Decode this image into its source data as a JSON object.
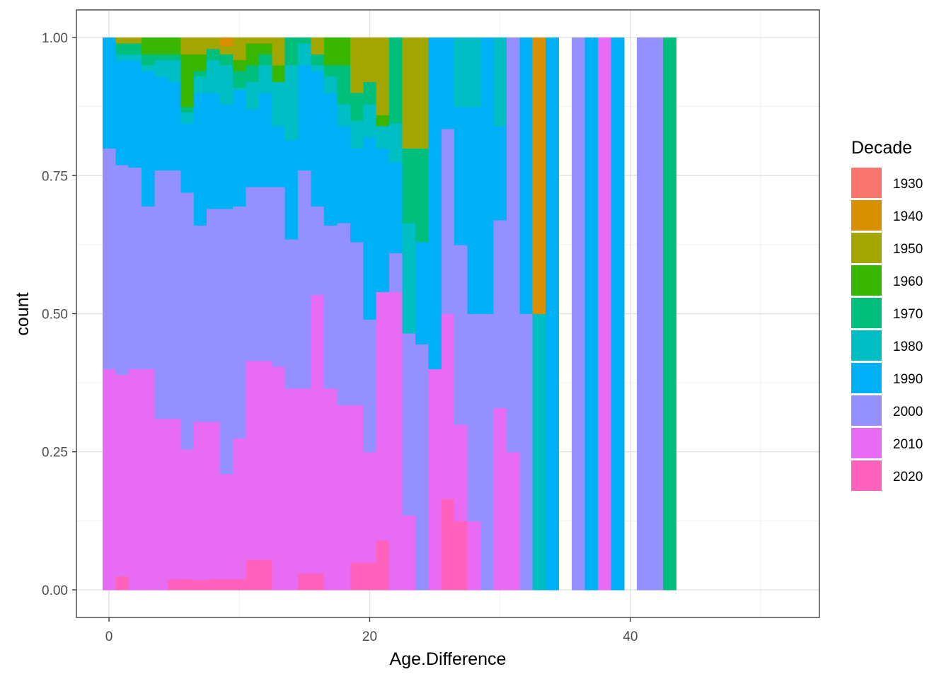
{
  "chart_data": {
    "type": "bar",
    "position": "fill",
    "xlabel": "Age.Difference",
    "ylabel": "count",
    "xlim": [
      -2.5,
      54.5
    ],
    "ylim": [
      -0.05,
      1.05
    ],
    "x_ticks": [
      0,
      20,
      40
    ],
    "x_tick_labels": [
      "0",
      "20",
      "40"
    ],
    "y_ticks": [
      0,
      0.25,
      0.5,
      0.75,
      1
    ],
    "y_tick_labels": [
      "0.00",
      "0.25",
      "0.50",
      "0.75",
      "1.00"
    ],
    "grid": true,
    "bin_width": 1,
    "legend_position": "right",
    "legend": {
      "title": "Decade",
      "entries": [
        {
          "label": "1930",
          "color": "#F8766D"
        },
        {
          "label": "1940",
          "color": "#D89000"
        },
        {
          "label": "1950",
          "color": "#A3A500"
        },
        {
          "label": "1960",
          "color": "#39B600"
        },
        {
          "label": "1970",
          "color": "#00BF7D"
        },
        {
          "label": "1980",
          "color": "#00BFC4"
        },
        {
          "label": "1990",
          "color": "#00B0F6"
        },
        {
          "label": "2000",
          "color": "#9590FF"
        },
        {
          "label": "2010",
          "color": "#E76BF3"
        },
        {
          "label": "2020",
          "color": "#FF62BC"
        }
      ]
    },
    "stack_order": [
      "2020",
      "2010",
      "2000",
      "1990",
      "1980",
      "1970",
      "1960",
      "1950",
      "1940",
      "1930"
    ],
    "bins": [
      {
        "x": 0,
        "proportions": {
          "2020": 0.0,
          "2010": 0.4,
          "2000": 0.4,
          "1990": 0.2
        }
      },
      {
        "x": 1,
        "proportions": {
          "2020": 0.025,
          "2010": 0.365,
          "2000": 0.38,
          "1990": 0.19,
          "1980": 0.01,
          "1970": 0.02,
          "1950": 0.01
        }
      },
      {
        "x": 2,
        "proportions": {
          "2020": 0.0,
          "2010": 0.4,
          "2000": 0.365,
          "1990": 0.195,
          "1980": 0.01,
          "1970": 0.02,
          "1950": 0.01
        }
      },
      {
        "x": 3,
        "proportions": {
          "2020": 0.0,
          "2010": 0.4,
          "2000": 0.295,
          "1990": 0.245,
          "1980": 0.01,
          "1970": 0.02,
          "1960": 0.03
        }
      },
      {
        "x": 4,
        "proportions": {
          "2020": 0.0,
          "2010": 0.31,
          "2000": 0.45,
          "1990": 0.17,
          "1980": 0.03,
          "1970": 0.01,
          "1960": 0.03
        }
      },
      {
        "x": 5,
        "proportions": {
          "2020": 0.02,
          "2010": 0.29,
          "2000": 0.45,
          "1990": 0.16,
          "1980": 0.04,
          "1970": 0.01,
          "1960": 0.03
        }
      },
      {
        "x": 6,
        "proportions": {
          "2020": 0.02,
          "2010": 0.235,
          "2000": 0.465,
          "1990": 0.125,
          "1980": 0.02,
          "1970": 0.01,
          "1960": 0.095,
          "1950": 0.03
        }
      },
      {
        "x": 7,
        "proportions": {
          "2020": 0.018,
          "2010": 0.287,
          "2000": 0.355,
          "1990": 0.24,
          "1980": 0.03,
          "1970": 0.01,
          "1960": 0.03,
          "1950": 0.03
        }
      },
      {
        "x": 8,
        "proportions": {
          "2020": 0.02,
          "2010": 0.285,
          "2000": 0.385,
          "1990": 0.21,
          "1980": 0.06,
          "1970": 0.02,
          "1950": 0.02
        }
      },
      {
        "x": 9,
        "proportions": {
          "2020": 0.02,
          "2010": 0.19,
          "2000": 0.48,
          "1990": 0.19,
          "1980": 0.07,
          "1970": 0.02,
          "1950": 0.015,
          "1940": 0.015
        }
      },
      {
        "x": 10,
        "proportions": {
          "2020": 0.02,
          "2010": 0.255,
          "2000": 0.42,
          "1990": 0.21,
          "1980": 0.005,
          "1970": 0.03,
          "1960": 0.02,
          "1950": 0.04
        }
      },
      {
        "x": 11,
        "proportions": {
          "2020": 0.055,
          "2010": 0.36,
          "2000": 0.315,
          "1990": 0.14,
          "1980": 0.05,
          "1970": 0.03,
          "1960": 0.04,
          "1950": 0.01
        }
      },
      {
        "x": 12,
        "proportions": {
          "2020": 0.055,
          "2010": 0.36,
          "2000": 0.315,
          "1990": 0.17,
          "1980": 0.05,
          "1970": 0.02,
          "1960": 0.02,
          "1950": 0.01
        }
      },
      {
        "x": 13,
        "proportions": {
          "2020": 0.0,
          "2010": 0.405,
          "2000": 0.325,
          "1990": 0.11,
          "1980": 0.08,
          "1970": 0.0,
          "1960": 0.03,
          "1950": 0.05
        }
      },
      {
        "x": 14,
        "proportions": {
          "2020": 0.0,
          "2010": 0.365,
          "2000": 0.27,
          "1990": 0.18,
          "1980": 0.135,
          "1970": 0.05
        }
      },
      {
        "x": 15,
        "proportions": {
          "2020": 0.03,
          "2010": 0.335,
          "2000": 0.395,
          "1990": 0.19,
          "1980": 0.04,
          "1970": 0.01
        }
      },
      {
        "x": 16,
        "proportions": {
          "2020": 0.03,
          "2010": 0.505,
          "2000": 0.16,
          "1990": 0.245,
          "1980": 0.01,
          "1970": 0.02,
          "1950": 0.03
        }
      },
      {
        "x": 17,
        "proportions": {
          "2020": 0.0,
          "2010": 0.365,
          "2000": 0.295,
          "1990": 0.24,
          "1980": 0.03,
          "1970": 0.02,
          "1960": 0.05
        }
      },
      {
        "x": 18,
        "proportions": {
          "2020": 0.0,
          "2010": 0.335,
          "2000": 0.33,
          "1990": 0.175,
          "1980": 0.04,
          "1970": 0.07,
          "1960": 0.05
        }
      },
      {
        "x": 19,
        "proportions": {
          "2020": 0.05,
          "2010": 0.285,
          "2000": 0.295,
          "1990": 0.17,
          "1980": 0.05,
          "1970": 0.05,
          "1950": 0.1
        }
      },
      {
        "x": 20,
        "proportions": {
          "2020": 0.05,
          "2010": 0.2,
          "2000": 0.24,
          "1990": 0.33,
          "1980": 0.06,
          "1970": 0.04,
          "1950": 0.08
        }
      },
      {
        "x": 21,
        "proportions": {
          "2020": 0.09,
          "2010": 0.45,
          "2000": 0.0,
          "1990": 0.26,
          "1980": 0.04,
          "1960": 0.02,
          "1950": 0.14
        }
      },
      {
        "x": 22,
        "proportions": {
          "2020": 0.0,
          "2010": 0.54,
          "2000": 0.07,
          "1990": 0.165,
          "1980": 0.07,
          "1970": 0.155
        }
      },
      {
        "x": 23,
        "proportions": {
          "2020": 0.0,
          "2010": 0.135,
          "2000": 0.33,
          "1990": 0.0,
          "1980": 0.2,
          "1970": 0.135,
          "1950": 0.2
        }
      },
      {
        "x": 24,
        "proportions": {
          "2020": 0.0,
          "2010": 0.0,
          "2000": 0.445,
          "1990": 0.185,
          "1970": 0.17,
          "1950": 0.2
        }
      },
      {
        "x": 25,
        "proportions": {
          "2020": 0.0,
          "2010": 0.4,
          "2000": 0.0,
          "1990": 0.6
        }
      },
      {
        "x": 26,
        "proportions": {
          "2020": 0.165,
          "2010": 0.335,
          "2000": 0.335,
          "1990": 0.165
        }
      },
      {
        "x": 27,
        "proportions": {
          "2020": 0.125,
          "2010": 0.175,
          "2000": 0.325,
          "1990": 0.25,
          "1980": 0.125
        }
      },
      {
        "x": 28,
        "proportions": {
          "2020": 0.0,
          "2010": 0.125,
          "2000": 0.375,
          "1990": 0.375,
          "1980": 0.125
        }
      },
      {
        "x": 29,
        "proportions": {
          "2020": 0.0,
          "2010": 0.0,
          "2000": 0.5,
          "1990": 0.5
        }
      },
      {
        "x": 30,
        "proportions": {
          "2020": 0.0,
          "2010": 0.33,
          "2000": 0.34,
          "1990": 0.17,
          "1980": 0.16
        }
      },
      {
        "x": 31,
        "proportions": {
          "2020": 0.0,
          "2010": 0.25,
          "2000": 0.75
        }
      },
      {
        "x": 32,
        "proportions": {
          "2000": 0.5,
          "1990": 0.5
        }
      },
      {
        "x": 33,
        "proportions": {
          "1980": 0.5,
          "1940": 0.5
        }
      },
      {
        "x": 34,
        "proportions": {
          "1990": 1.0
        }
      },
      {
        "x": 36,
        "proportions": {
          "2000": 1.0
        }
      },
      {
        "x": 37,
        "proportions": {
          "1990": 1.0
        }
      },
      {
        "x": 38,
        "proportions": {
          "2010": 1.0
        }
      },
      {
        "x": 39,
        "proportions": {
          "1990": 1.0
        }
      },
      {
        "x": 41,
        "proportions": {
          "2000": 1.0
        }
      },
      {
        "x": 42,
        "proportions": {
          "2000": 1.0
        }
      },
      {
        "x": 43,
        "proportions": {
          "1970": 1.0
        }
      }
    ]
  }
}
